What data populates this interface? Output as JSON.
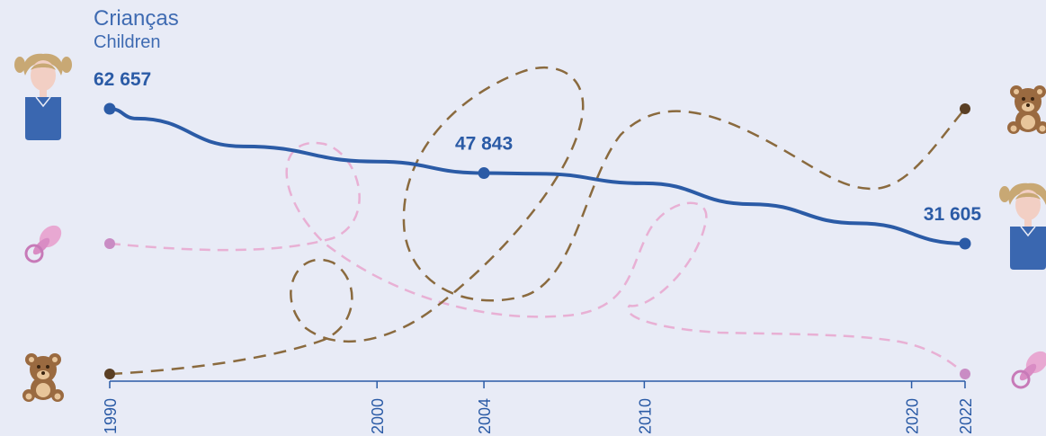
{
  "chart_data": {
    "type": "line",
    "title": "Crianças",
    "subtitle": "Children",
    "x": [
      1990,
      2000,
      2004,
      2010,
      2020,
      2022
    ],
    "tick_labels": [
      "1990",
      "2000",
      "2004",
      "2010",
      "2020",
      "2022"
    ],
    "xlim": [
      1990,
      2022
    ],
    "series": [
      {
        "icon": "girl-icon",
        "color": "#2b5ba6",
        "style": "solid",
        "x": [
          1990,
          1991,
          1995,
          2000,
          2004,
          2006,
          2010,
          2014,
          2018,
          2022
        ],
        "values": [
          62657,
          60400,
          54000,
          50500,
          47843,
          47700,
          45500,
          40700,
          36300,
          31605
        ]
      },
      {
        "icon": "pacifier-icon",
        "color": "#e8b0d4",
        "style": "dashed",
        "endpoints": [
          "1990",
          "2022"
        ]
      },
      {
        "icon": "teddy-bear-icon",
        "color": "#8a6a3e",
        "style": "dashed",
        "endpoints": [
          "1990",
          "2022"
        ]
      }
    ],
    "data_labels": [
      {
        "text": "62 657",
        "x": 1990,
        "value": 62657
      },
      {
        "text": "47 843",
        "x": 2004,
        "value": 47843
      },
      {
        "text": "31 605",
        "x": 2022,
        "value": 31605
      }
    ],
    "left_icons": [
      "girl-icon",
      "pacifier-icon",
      "teddy-bear-icon"
    ],
    "right_icons": [
      "teddy-bear-icon",
      "girl-icon",
      "pacifier-icon"
    ],
    "grid": false,
    "legend": "none"
  },
  "colors": {
    "background": "#e8ebf6",
    "children_line": "#2b5ba6",
    "pacifier_line": "#e8b0d4",
    "teddy_line": "#8a6a3e",
    "teddy_dot": "#5a3f24",
    "pacifier_dot": "#c98cc4",
    "axis": "#2b5ba6"
  }
}
